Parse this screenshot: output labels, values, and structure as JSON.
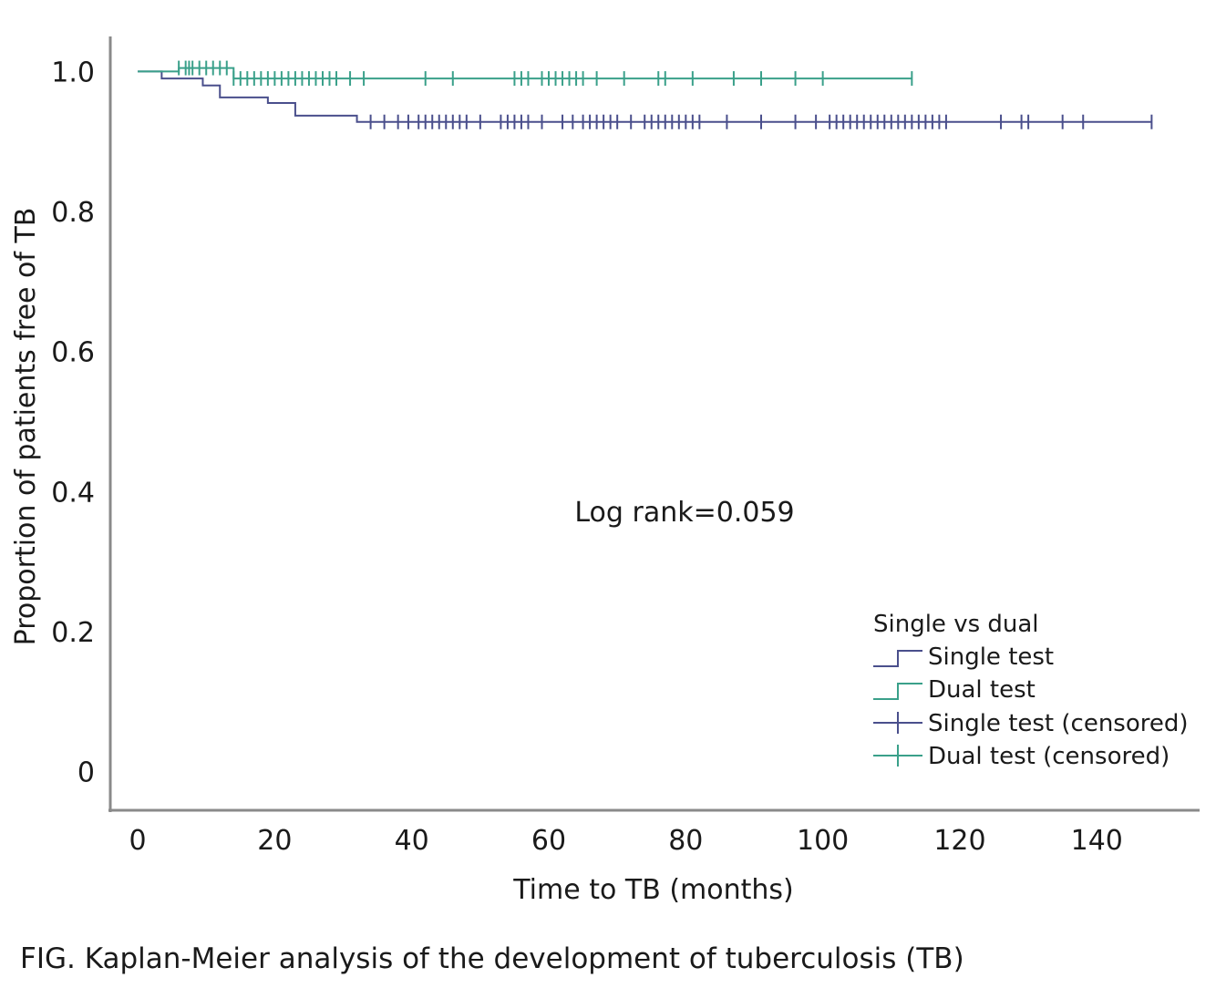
{
  "caption": "FIG.  Kaplan-Meier analysis of the development of tuberculosis (TB)",
  "chart_data": {
    "type": "line",
    "subtype": "kaplan-meier step",
    "xlabel": "Time to TB (months)",
    "ylabel": "Proportion of patients free of TB",
    "xlim": [
      -4,
      155
    ],
    "ylim": [
      -0.055,
      1.05
    ],
    "xticks": [
      0,
      20,
      40,
      60,
      80,
      100,
      120,
      140
    ],
    "xtick_labels": [
      "0",
      "20",
      "40",
      "60",
      "80",
      "100",
      "120",
      "140"
    ],
    "yticks": [
      0,
      0.2,
      0.4,
      0.6,
      0.8,
      1.0
    ],
    "ytick_labels": [
      "0",
      "0.2",
      "0.4",
      "0.6",
      "0.8",
      "1.0"
    ],
    "annotation": "Log rank=0.059",
    "legend": {
      "title": "Single vs dual",
      "placement": "bottom-right",
      "entries": [
        "Single test",
        "Dual test",
        "Single test (censored)",
        "Dual test (censored)"
      ]
    },
    "series": [
      {
        "name": "Single test",
        "color": "#4a4f8c",
        "steps": [
          [
            0,
            1.0
          ],
          [
            3.5,
            0.99
          ],
          [
            9.5,
            0.98
          ],
          [
            12,
            0.963
          ],
          [
            19,
            0.955
          ],
          [
            23,
            0.937
          ],
          [
            32,
            0.928
          ],
          [
            148,
            0.928
          ]
        ],
        "censored": [
          34,
          36,
          38,
          39.5,
          41,
          42,
          43,
          44,
          45,
          46,
          47,
          48,
          50,
          53,
          54,
          55,
          56,
          57,
          59,
          62,
          63.5,
          65,
          66,
          67,
          68,
          69,
          70,
          72,
          74,
          75,
          76,
          77,
          78,
          79,
          80,
          81,
          82,
          86,
          91,
          96,
          99,
          101,
          102,
          103,
          104,
          105,
          106,
          107,
          108,
          109,
          110,
          111,
          112,
          113,
          114,
          115,
          116,
          117,
          118,
          126,
          129,
          130,
          135,
          138,
          148
        ]
      },
      {
        "name": "Dual test",
        "color": "#3aa08a",
        "steps": [
          [
            0,
            1.0
          ],
          [
            6,
            1.005
          ],
          [
            14,
            0.99
          ],
          [
            113,
            0.99
          ]
        ],
        "censored": [
          6,
          7,
          7.5,
          8,
          9,
          10,
          11,
          12,
          13,
          14,
          15,
          16,
          17,
          18,
          19,
          20,
          21,
          22,
          23,
          24,
          25,
          26,
          27,
          28,
          29,
          31,
          33,
          42,
          46,
          55,
          56,
          57,
          59,
          60,
          61,
          62,
          63,
          64,
          65,
          67,
          71,
          76,
          77,
          81,
          87,
          91,
          96,
          100,
          113
        ]
      }
    ]
  }
}
